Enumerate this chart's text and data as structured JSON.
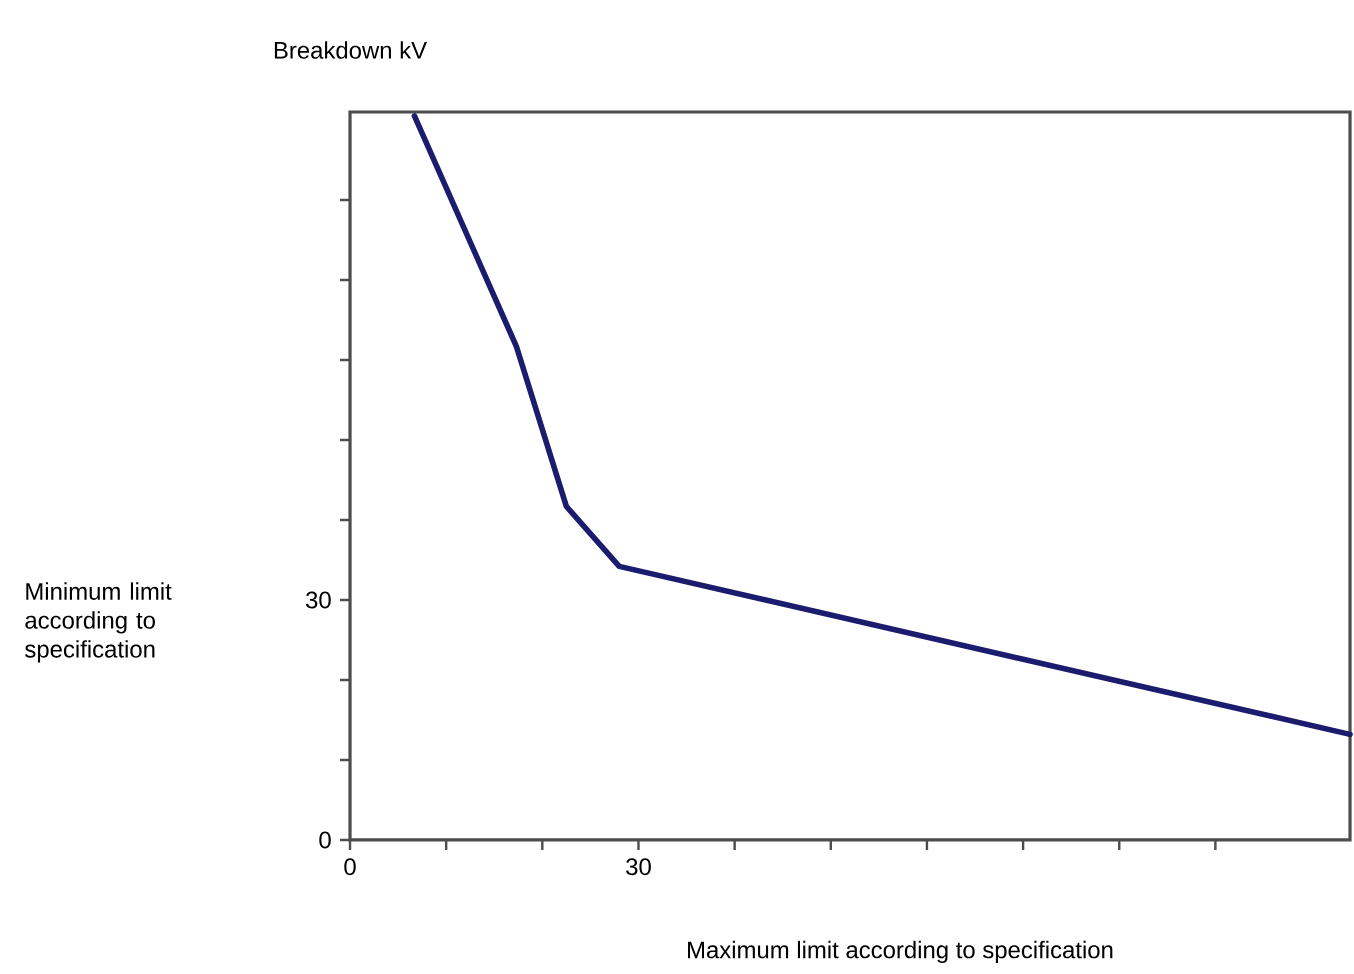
{
  "chart_data": {
    "type": "line",
    "ylabel": "Breakdown kV",
    "annotations": [
      "Minimum limit according to specification",
      "Maximum limit according to specification"
    ],
    "x": [
      6.7,
      17.3,
      22.5,
      28,
      104
    ],
    "series": [
      {
        "color": "#1c1c6e",
        "values": [
          90.5,
          61.7,
          41.7,
          34.2,
          13.2
        ]
      }
    ],
    "xlim": [
      0,
      104
    ],
    "ylim": [
      0,
      91
    ],
    "xticks": [
      0,
      {
        "value": 10,
        "label": null
      },
      {
        "value": 20,
        "label": null
      },
      30,
      {
        "value": 40,
        "label": null
      },
      {
        "value": 50,
        "label": null
      },
      {
        "value": 60,
        "label": null
      },
      {
        "value": 70,
        "label": null
      },
      {
        "value": 80,
        "label": null
      },
      {
        "value": 90,
        "label": null
      }
    ],
    "yticks": [
      0,
      {
        "value": 10,
        "label": null
      },
      {
        "value": 20,
        "label": null
      },
      30,
      {
        "value": 40,
        "label": null
      },
      {
        "value": 50,
        "label": null
      },
      {
        "value": 60,
        "label": null
      },
      {
        "value": 70,
        "label": null
      },
      {
        "value": 80,
        "label": null
      }
    ],
    "marker": "none",
    "line_style": "solid"
  }
}
